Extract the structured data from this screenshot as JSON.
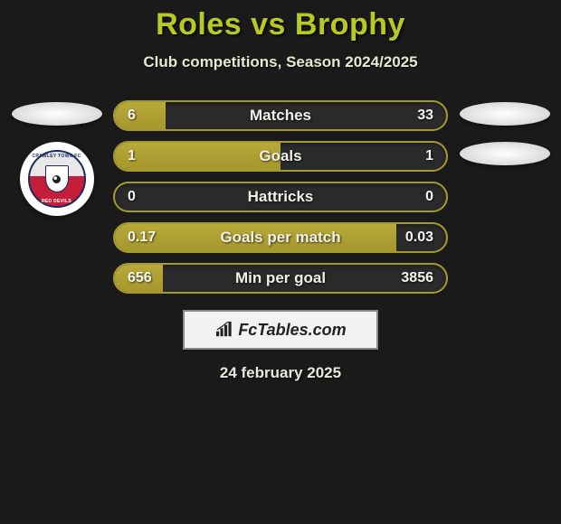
{
  "title": "Roles vs Brophy",
  "subtitle": "Club competitions, Season 2024/2025",
  "date": "24 february 2025",
  "branding": "FcTables.com",
  "colors": {
    "background": "#1a1a1a",
    "title_color": "#b8c923",
    "bar_fill": "#a6972e",
    "bar_border": "#a59a2f",
    "bar_background": "#2a2a2a",
    "text_color": "#f0f0e8"
  },
  "left_player": {
    "club_top_text": "CRAWLEY TOWN FC",
    "club_bottom_text": "RED DEVILS"
  },
  "stats": [
    {
      "label": "Matches",
      "left_val": "6",
      "right_val": "33",
      "fill_pct": 15.4,
      "label_offset_pct": 50
    },
    {
      "label": "Goals",
      "left_val": "1",
      "right_val": "1",
      "fill_pct": 50,
      "label_offset_pct": 50
    },
    {
      "label": "Hattricks",
      "left_val": "0",
      "right_val": "0",
      "fill_pct": 0,
      "label_offset_pct": 50
    },
    {
      "label": "Goals per match",
      "left_val": "0.17",
      "right_val": "0.03",
      "fill_pct": 85,
      "label_offset_pct": 50
    },
    {
      "label": "Min per goal",
      "left_val": "656",
      "right_val": "3856",
      "fill_pct": 14.5,
      "label_offset_pct": 50
    }
  ]
}
